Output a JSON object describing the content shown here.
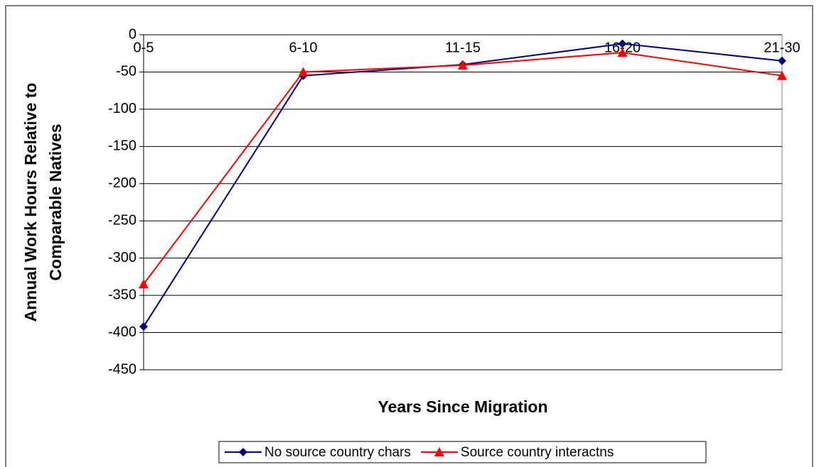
{
  "chart_data": {
    "type": "line",
    "x_label": "Years Since Migration",
    "y_label": [
      "Annual Work Hours Relative to",
      "Comparable Natives"
    ],
    "categories": [
      "0-5",
      "6-10",
      "11-15",
      "16-20",
      "21-30"
    ],
    "series": [
      {
        "name": "No source country chars",
        "color": "#000080",
        "marker": "diamond",
        "values": [
          -392,
          -55,
          -40,
          -12,
          -35
        ]
      },
      {
        "name": "Source country interactns",
        "color": "#ff0000",
        "marker": "triangle",
        "values": [
          -335,
          -50,
          -41,
          -24,
          -55
        ]
      }
    ],
    "ylim": [
      -450,
      0
    ],
    "yticks": [
      0,
      -50,
      -100,
      -150,
      -200,
      -250,
      -300,
      -350,
      -400,
      -450
    ],
    "grid": true,
    "legend": "bottom"
  }
}
